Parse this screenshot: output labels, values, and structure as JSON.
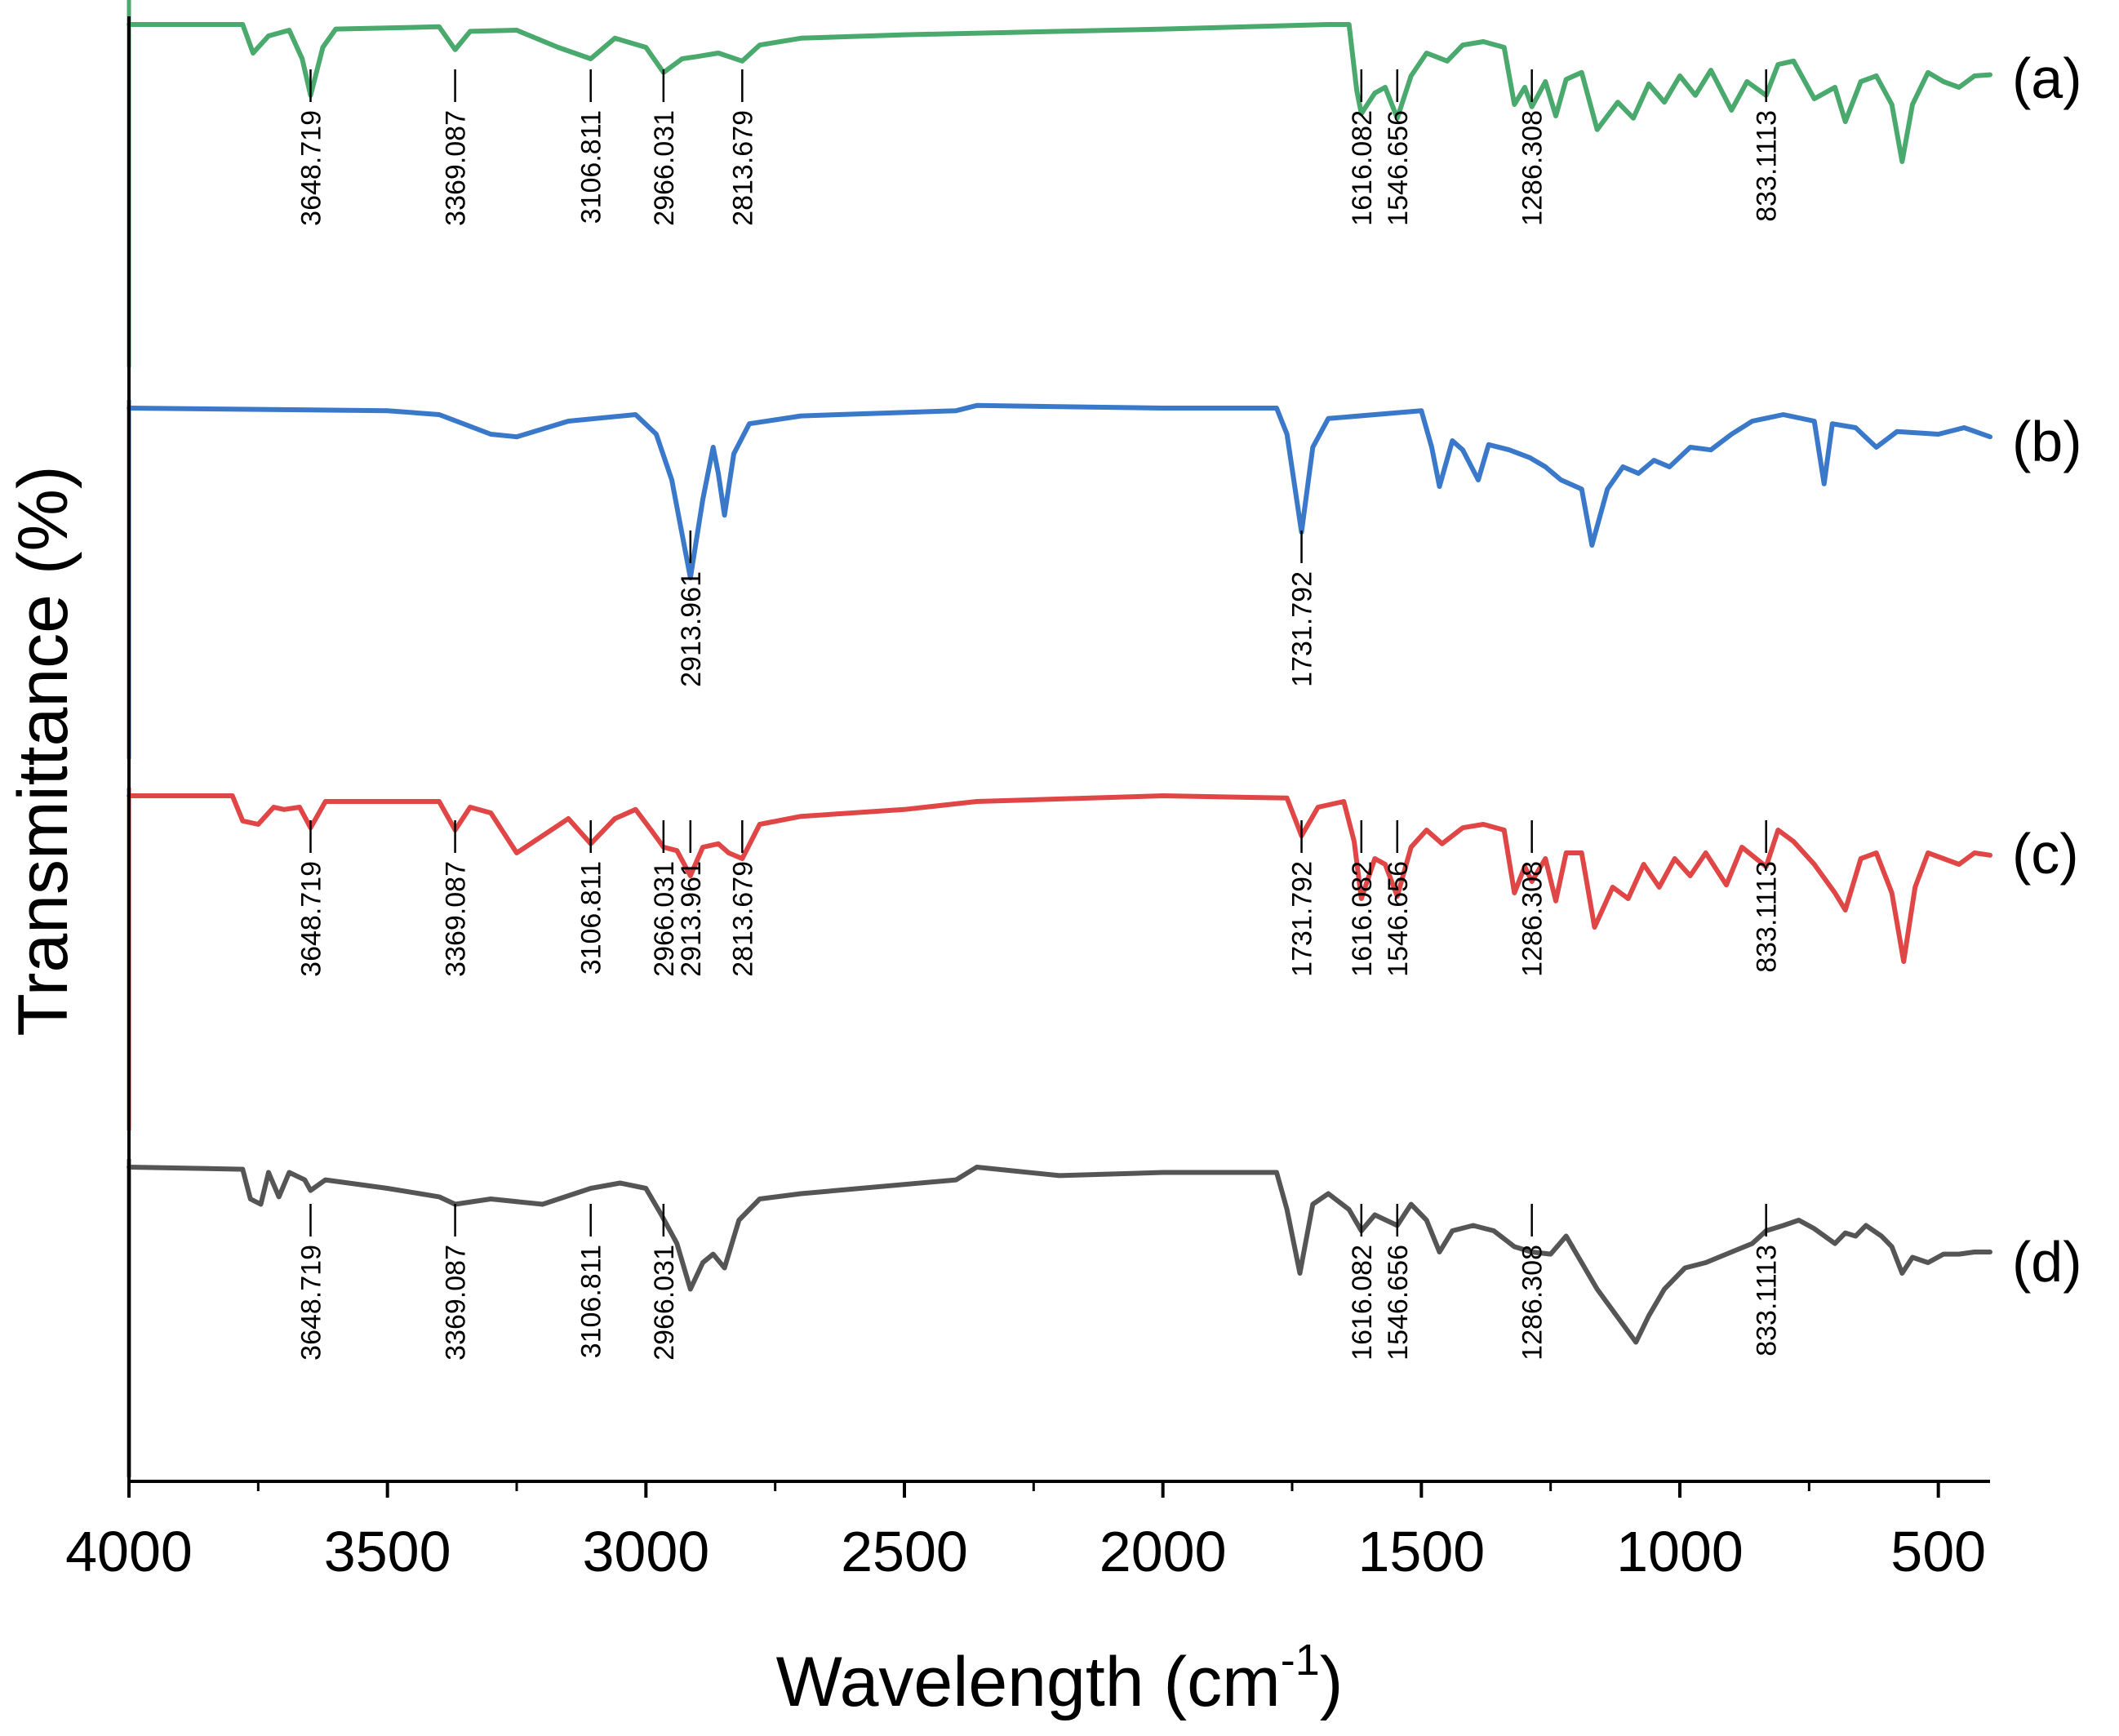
{
  "chart_data": {
    "type": "line",
    "title": "",
    "xlabel": "Wavelength (cm",
    "xlabel_sup": "-1",
    "xlabel_close": ")",
    "ylabel": "Transmittance (%)",
    "xlim": [
      4000,
      400
    ],
    "x_ticks": [
      4000,
      3500,
      3000,
      2500,
      2000,
      1500,
      1000,
      500
    ],
    "x_tick_labels": [
      "4000",
      "3500",
      "3000",
      "2500",
      "2000",
      "1500",
      "1000",
      "500"
    ],
    "grid": false,
    "y_ticks_shown": false,
    "series": [
      {
        "name": "(a)",
        "color": "#4aa96c",
        "description_points": [
          [
            4000,
            0.0
          ],
          [
            3780,
            0.0
          ],
          [
            3760,
            0.25
          ],
          [
            3730,
            0.1
          ],
          [
            3690,
            0.05
          ],
          [
            3665,
            0.3
          ],
          [
            3648.7,
            0.62
          ],
          [
            3625,
            0.2
          ],
          [
            3600,
            0.04
          ],
          [
            3400,
            0.02
          ],
          [
            3369.1,
            0.22
          ],
          [
            3340,
            0.06
          ],
          [
            3250,
            0.05
          ],
          [
            3170,
            0.2
          ],
          [
            3106.8,
            0.3
          ],
          [
            3060,
            0.12
          ],
          [
            3000,
            0.2
          ],
          [
            2966.0,
            0.42
          ],
          [
            2930,
            0.3
          ],
          [
            2900,
            0.28
          ],
          [
            2860,
            0.25
          ],
          [
            2813.7,
            0.32
          ],
          [
            2780,
            0.18
          ],
          [
            2700,
            0.12
          ],
          [
            2500,
            0.09
          ],
          [
            2000,
            0.04
          ],
          [
            1680,
            0.0
          ],
          [
            1640,
            0.0
          ],
          [
            1625,
            0.58
          ],
          [
            1616.1,
            0.78
          ],
          [
            1590,
            0.6
          ],
          [
            1570,
            0.55
          ],
          [
            1546.7,
            0.82
          ],
          [
            1520,
            0.45
          ],
          [
            1490,
            0.25
          ],
          [
            1450,
            0.32
          ],
          [
            1420,
            0.18
          ],
          [
            1380,
            0.15
          ],
          [
            1340,
            0.2
          ],
          [
            1320,
            0.7
          ],
          [
            1300,
            0.55
          ],
          [
            1286.3,
            0.72
          ],
          [
            1260,
            0.5
          ],
          [
            1240,
            0.8
          ],
          [
            1220,
            0.48
          ],
          [
            1190,
            0.42
          ],
          [
            1160,
            0.92
          ],
          [
            1120,
            0.68
          ],
          [
            1090,
            0.82
          ],
          [
            1060,
            0.52
          ],
          [
            1030,
            0.68
          ],
          [
            1000,
            0.45
          ],
          [
            970,
            0.62
          ],
          [
            940,
            0.4
          ],
          [
            900,
            0.75
          ],
          [
            870,
            0.5
          ],
          [
            833.1,
            0.62
          ],
          [
            810,
            0.35
          ],
          [
            780,
            0.32
          ],
          [
            740,
            0.65
          ],
          [
            700,
            0.55
          ],
          [
            680,
            0.85
          ],
          [
            650,
            0.5
          ],
          [
            620,
            0.45
          ],
          [
            590,
            0.7
          ],
          [
            570,
            1.2
          ],
          [
            550,
            0.7
          ],
          [
            520,
            0.42
          ],
          [
            490,
            0.5
          ],
          [
            460,
            0.55
          ],
          [
            430,
            0.45
          ],
          [
            400,
            0.44
          ]
        ],
        "peaks": [
          "3648.719",
          "3369.087",
          "3106.811",
          "2966.031",
          "2813.679",
          "1616.082",
          "1546.656",
          "1286.308",
          "833.1113"
        ]
      },
      {
        "name": "(b)",
        "color": "#3a78c9",
        "description_points": [
          [
            4000,
            0.0
          ],
          [
            3500,
            0.02
          ],
          [
            3400,
            0.05
          ],
          [
            3300,
            0.2
          ],
          [
            3250,
            0.22
          ],
          [
            3150,
            0.1
          ],
          [
            3020,
            0.05
          ],
          [
            2980,
            0.2
          ],
          [
            2950,
            0.55
          ],
          [
            2913.96,
            1.3
          ],
          [
            2890,
            0.7
          ],
          [
            2870,
            0.3
          ],
          [
            2860,
            0.5
          ],
          [
            2848,
            0.82
          ],
          [
            2830,
            0.35
          ],
          [
            2800,
            0.12
          ],
          [
            2700,
            0.06
          ],
          [
            2400,
            0.02
          ],
          [
            2360,
            -0.02
          ],
          [
            2000,
            0.0
          ],
          [
            1780,
            0.0
          ],
          [
            1760,
            0.2
          ],
          [
            1731.8,
            0.95
          ],
          [
            1710,
            0.3
          ],
          [
            1680,
            0.08
          ],
          [
            1500,
            0.02
          ],
          [
            1480,
            0.3
          ],
          [
            1465,
            0.6
          ],
          [
            1440,
            0.25
          ],
          [
            1420,
            0.32
          ],
          [
            1390,
            0.55
          ],
          [
            1370,
            0.28
          ],
          [
            1330,
            0.32
          ],
          [
            1290,
            0.38
          ],
          [
            1260,
            0.45
          ],
          [
            1230,
            0.55
          ],
          [
            1190,
            0.62
          ],
          [
            1170,
            1.05
          ],
          [
            1140,
            0.62
          ],
          [
            1110,
            0.45
          ],
          [
            1080,
            0.5
          ],
          [
            1050,
            0.4
          ],
          [
            1020,
            0.45
          ],
          [
            980,
            0.3
          ],
          [
            940,
            0.32
          ],
          [
            900,
            0.2
          ],
          [
            860,
            0.1
          ],
          [
            800,
            0.05
          ],
          [
            740,
            0.1
          ],
          [
            721,
            0.58
          ],
          [
            705,
            0.12
          ],
          [
            660,
            0.15
          ],
          [
            620,
            0.3
          ],
          [
            580,
            0.18
          ],
          [
            500,
            0.2
          ],
          [
            450,
            0.15
          ],
          [
            400,
            0.22
          ]
        ],
        "peaks": [
          "2913.961",
          "1731.792"
        ]
      },
      {
        "name": "(c)",
        "color": "#e04646",
        "description_points": [
          [
            4000,
            0.0
          ],
          [
            3800,
            0.0
          ],
          [
            3780,
            0.22
          ],
          [
            3750,
            0.25
          ],
          [
            3720,
            0.1
          ],
          [
            3700,
            0.12
          ],
          [
            3670,
            0.1
          ],
          [
            3648.7,
            0.28
          ],
          [
            3620,
            0.05
          ],
          [
            3400,
            0.05
          ],
          [
            3369.1,
            0.3
          ],
          [
            3340,
            0.1
          ],
          [
            3300,
            0.15
          ],
          [
            3250,
            0.5
          ],
          [
            3200,
            0.35
          ],
          [
            3150,
            0.2
          ],
          [
            3106.8,
            0.42
          ],
          [
            3060,
            0.2
          ],
          [
            3020,
            0.12
          ],
          [
            2990,
            0.3
          ],
          [
            2966.0,
            0.45
          ],
          [
            2940,
            0.48
          ],
          [
            2913.96,
            0.7
          ],
          [
            2890,
            0.45
          ],
          [
            2860,
            0.42
          ],
          [
            2840,
            0.5
          ],
          [
            2813.7,
            0.55
          ],
          [
            2780,
            0.25
          ],
          [
            2700,
            0.18
          ],
          [
            2500,
            0.12
          ],
          [
            2360,
            0.05
          ],
          [
            2000,
            0.0
          ],
          [
            1760,
            0.02
          ],
          [
            1731.8,
            0.35
          ],
          [
            1700,
            0.1
          ],
          [
            1650,
            0.05
          ],
          [
            1630,
            0.4
          ],
          [
            1616.1,
            0.9
          ],
          [
            1590,
            0.55
          ],
          [
            1570,
            0.6
          ],
          [
            1546.7,
            0.88
          ],
          [
            1520,
            0.45
          ],
          [
            1490,
            0.3
          ],
          [
            1460,
            0.42
          ],
          [
            1420,
            0.28
          ],
          [
            1380,
            0.25
          ],
          [
            1340,
            0.3
          ],
          [
            1320,
            0.85
          ],
          [
            1300,
            0.62
          ],
          [
            1286.3,
            0.75
          ],
          [
            1260,
            0.55
          ],
          [
            1240,
            0.92
          ],
          [
            1220,
            0.5
          ],
          [
            1190,
            0.5
          ],
          [
            1165,
            1.15
          ],
          [
            1130,
            0.8
          ],
          [
            1100,
            0.9
          ],
          [
            1070,
            0.6
          ],
          [
            1040,
            0.8
          ],
          [
            1010,
            0.55
          ],
          [
            980,
            0.7
          ],
          [
            950,
            0.5
          ],
          [
            910,
            0.78
          ],
          [
            880,
            0.45
          ],
          [
            833.1,
            0.62
          ],
          [
            810,
            0.3
          ],
          [
            780,
            0.4
          ],
          [
            740,
            0.6
          ],
          [
            700,
            0.85
          ],
          [
            680,
            1.0
          ],
          [
            650,
            0.55
          ],
          [
            620,
            0.5
          ],
          [
            590,
            0.85
          ],
          [
            567,
            1.45
          ],
          [
            545,
            0.8
          ],
          [
            520,
            0.5
          ],
          [
            490,
            0.55
          ],
          [
            460,
            0.6
          ],
          [
            430,
            0.5
          ],
          [
            400,
            0.52
          ]
        ],
        "peaks": [
          "3648.719",
          "3369.087",
          "3106.811",
          "2966.031",
          "2913.961",
          "2813.679",
          "1731.792",
          "1616.082",
          "1546.656",
          "1286.308",
          "833.1113"
        ]
      },
      {
        "name": "(d)",
        "color": "#555555",
        "description_points": [
          [
            4000,
            0.0
          ],
          [
            3780,
            0.02
          ],
          [
            3765,
            0.3
          ],
          [
            3745,
            0.35
          ],
          [
            3730,
            0.05
          ],
          [
            3710,
            0.28
          ],
          [
            3690,
            0.05
          ],
          [
            3660,
            0.12
          ],
          [
            3648.7,
            0.22
          ],
          [
            3620,
            0.12
          ],
          [
            3500,
            0.2
          ],
          [
            3400,
            0.28
          ],
          [
            3369.1,
            0.35
          ],
          [
            3300,
            0.3
          ],
          [
            3200,
            0.35
          ],
          [
            3106.8,
            0.2
          ],
          [
            3050,
            0.15
          ],
          [
            3000,
            0.2
          ],
          [
            2970,
            0.45
          ],
          [
            2940,
            0.72
          ],
          [
            2913.96,
            1.15
          ],
          [
            2890,
            0.9
          ],
          [
            2870,
            0.82
          ],
          [
            2848,
            0.95
          ],
          [
            2820,
            0.5
          ],
          [
            2780,
            0.3
          ],
          [
            2700,
            0.25
          ],
          [
            2400,
            0.12
          ],
          [
            2360,
            0.0
          ],
          [
            2200,
            0.08
          ],
          [
            2000,
            0.05
          ],
          [
            1780,
            0.05
          ],
          [
            1760,
            0.4
          ],
          [
            1735,
            1.0
          ],
          [
            1710,
            0.35
          ],
          [
            1680,
            0.25
          ],
          [
            1640,
            0.4
          ],
          [
            1616.1,
            0.6
          ],
          [
            1590,
            0.45
          ],
          [
            1546.7,
            0.55
          ],
          [
            1520,
            0.35
          ],
          [
            1490,
            0.5
          ],
          [
            1465,
            0.8
          ],
          [
            1440,
            0.6
          ],
          [
            1400,
            0.55
          ],
          [
            1360,
            0.6
          ],
          [
            1320,
            0.75
          ],
          [
            1286.3,
            0.8
          ],
          [
            1250,
            0.82
          ],
          [
            1220,
            0.65
          ],
          [
            1190,
            0.9
          ],
          [
            1160,
            1.15
          ],
          [
            1130,
            1.35
          ],
          [
            1100,
            1.55
          ],
          [
            1085,
            1.65
          ],
          [
            1060,
            1.4
          ],
          [
            1030,
            1.15
          ],
          [
            990,
            0.95
          ],
          [
            950,
            0.9
          ],
          [
            900,
            0.8
          ],
          [
            860,
            0.72
          ],
          [
            833.1,
            0.6
          ],
          [
            800,
            0.55
          ],
          [
            770,
            0.5
          ],
          [
            740,
            0.58
          ],
          [
            700,
            0.72
          ],
          [
            680,
            0.62
          ],
          [
            660,
            0.65
          ],
          [
            640,
            0.55
          ],
          [
            610,
            0.65
          ],
          [
            590,
            0.75
          ],
          [
            570,
            1.0
          ],
          [
            550,
            0.85
          ],
          [
            520,
            0.9
          ],
          [
            490,
            0.82
          ],
          [
            460,
            0.82
          ],
          [
            430,
            0.8
          ],
          [
            400,
            0.8
          ]
        ],
        "peaks": [
          "3648.719",
          "3369.087",
          "3106.811",
          "2966.031",
          "1616.082",
          "1546.656",
          "1286.308",
          "833.1113"
        ]
      }
    ]
  }
}
